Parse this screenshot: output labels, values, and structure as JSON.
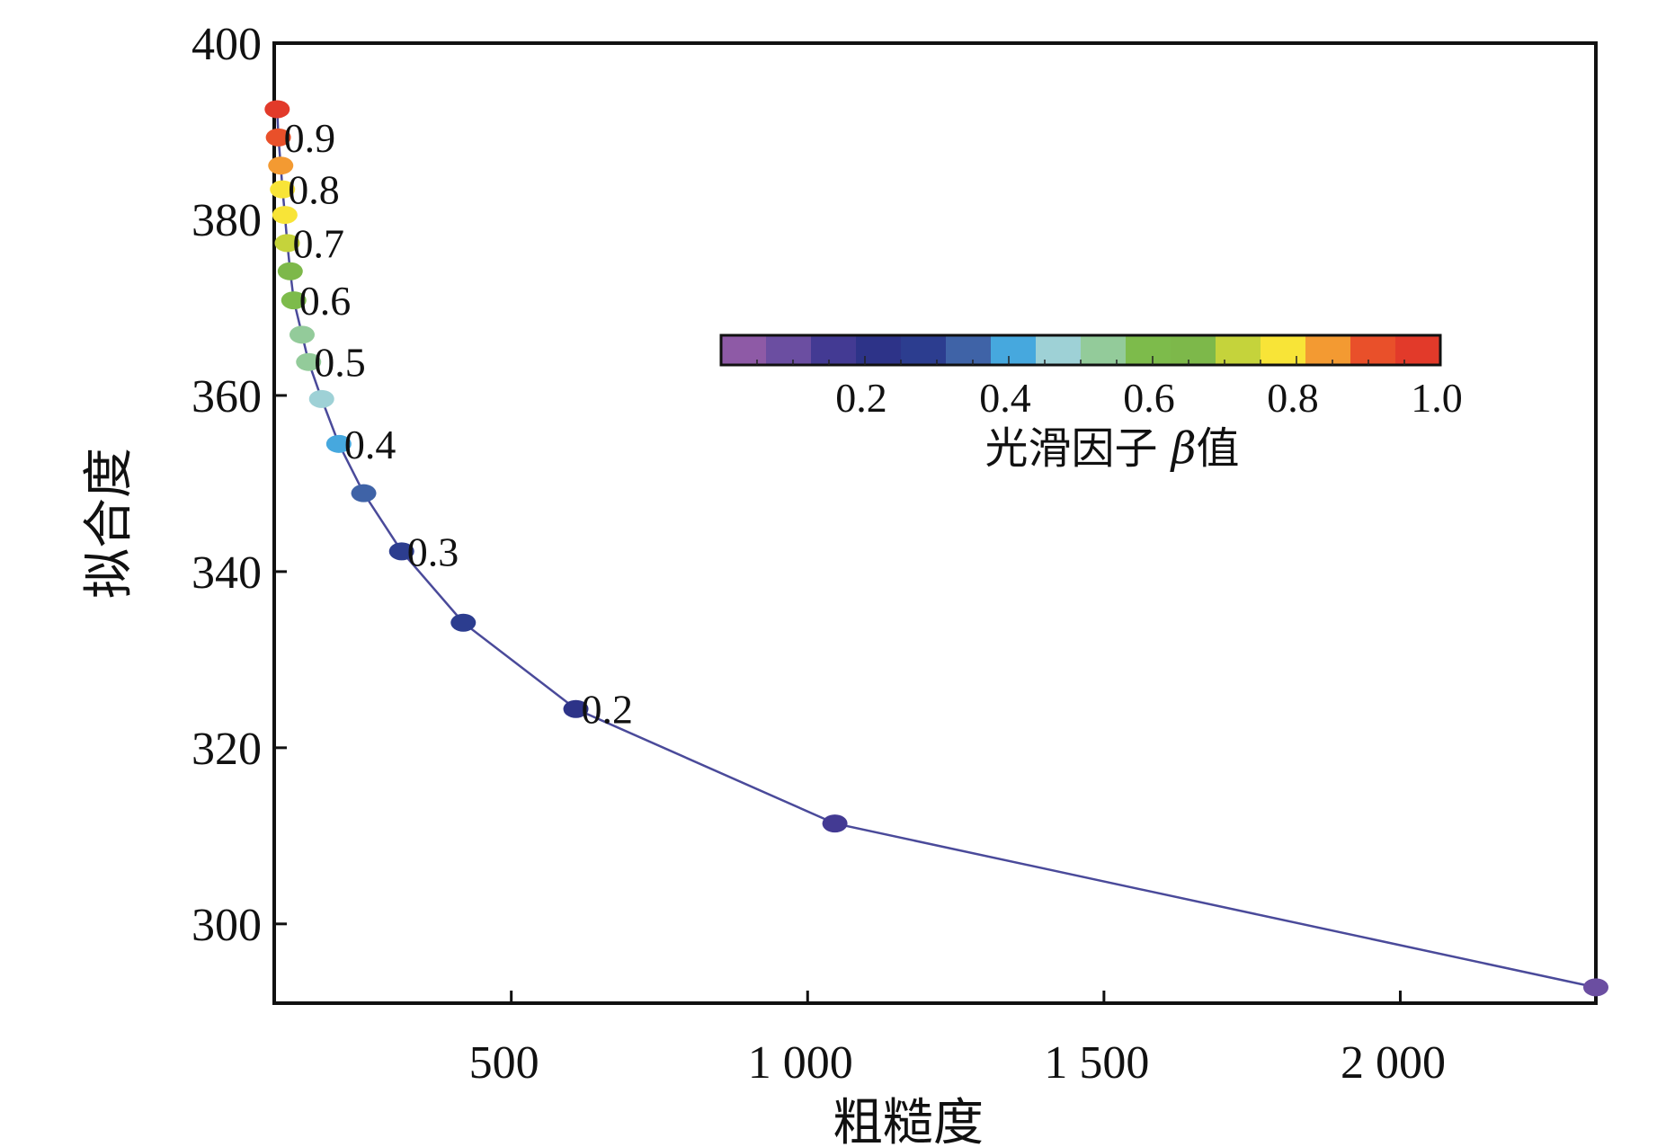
{
  "chart_data": {
    "type": "scatter",
    "title": "",
    "xlabel": "粗糙度",
    "ylabel": "拟合度",
    "xlim": [
      100,
      2330
    ],
    "ylim": [
      291,
      400
    ],
    "x_ticks": [
      500,
      1000,
      1500,
      2000
    ],
    "x_tick_labels": [
      "500",
      "1 000",
      "1 500",
      "2 000"
    ],
    "y_ticks": [
      300,
      320,
      340,
      360,
      380,
      400
    ],
    "y_tick_labels": [
      "300",
      "320",
      "340",
      "360",
      "380",
      "400"
    ],
    "line_color": "#4a4a9a",
    "series": [
      {
        "name": "光滑因子 β值",
        "points": [
          {
            "x": 105,
            "y": 392.5,
            "beta": 0.95
          },
          {
            "x": 107,
            "y": 389.3,
            "beta": 0.9
          },
          {
            "x": 111,
            "y": 386.1,
            "beta": 0.85
          },
          {
            "x": 114,
            "y": 383.4,
            "beta": 0.8
          },
          {
            "x": 118,
            "y": 380.5,
            "beta": 0.75
          },
          {
            "x": 122,
            "y": 377.3,
            "beta": 0.7
          },
          {
            "x": 127,
            "y": 374.1,
            "beta": 0.65
          },
          {
            "x": 133,
            "y": 370.8,
            "beta": 0.6
          },
          {
            "x": 147,
            "y": 366.9,
            "beta": 0.55
          },
          {
            "x": 158,
            "y": 363.8,
            "beta": 0.5
          },
          {
            "x": 180,
            "y": 359.6,
            "beta": 0.45
          },
          {
            "x": 209,
            "y": 354.5,
            "beta": 0.4
          },
          {
            "x": 251,
            "y": 348.9,
            "beta": 0.35
          },
          {
            "x": 315,
            "y": 342.3,
            "beta": 0.3
          },
          {
            "x": 419,
            "y": 334.2,
            "beta": 0.25
          },
          {
            "x": 609,
            "y": 324.4,
            "beta": 0.2
          },
          {
            "x": 1046,
            "y": 311.4,
            "beta": 0.15
          },
          {
            "x": 2330,
            "y": 292.8,
            "beta": 0.1
          }
        ]
      }
    ],
    "annotations": [
      {
        "text": "0.9",
        "x": 107,
        "y": 389.3
      },
      {
        "text": "0.8",
        "x": 114,
        "y": 383.4
      },
      {
        "text": "0.7",
        "x": 122,
        "y": 377.3
      },
      {
        "text": "0.6",
        "x": 133,
        "y": 370.8
      },
      {
        "text": "0.5",
        "x": 158,
        "y": 363.8
      },
      {
        "text": "0.4",
        "x": 209,
        "y": 354.5
      },
      {
        "text": "0.3",
        "x": 315,
        "y": 342.3
      },
      {
        "text": "0.2",
        "x": 609,
        "y": 324.4
      }
    ],
    "colorbar": {
      "title_prefix": "光滑因子 ",
      "title_symbol": "β",
      "title_suffix": "值",
      "range": [
        0,
        1.0
      ],
      "ticks": [
        0.2,
        0.4,
        0.6,
        0.8,
        1.0
      ],
      "tick_labels": [
        "0.2",
        "0.4",
        "0.6",
        "0.8",
        "1.0"
      ],
      "legend_position": "upper-right",
      "colors": [
        "#8e5aa6",
        "#6b4ea1",
        "#433a93",
        "#2d3388",
        "#2c3d8f",
        "#3f63a7",
        "#46a8de",
        "#9ed1d6",
        "#93cb9a",
        "#7dbb4b",
        "#7db84a",
        "#c5d33b",
        "#f8e437",
        "#f39a32",
        "#e9502a",
        "#e23a2a"
      ]
    }
  }
}
